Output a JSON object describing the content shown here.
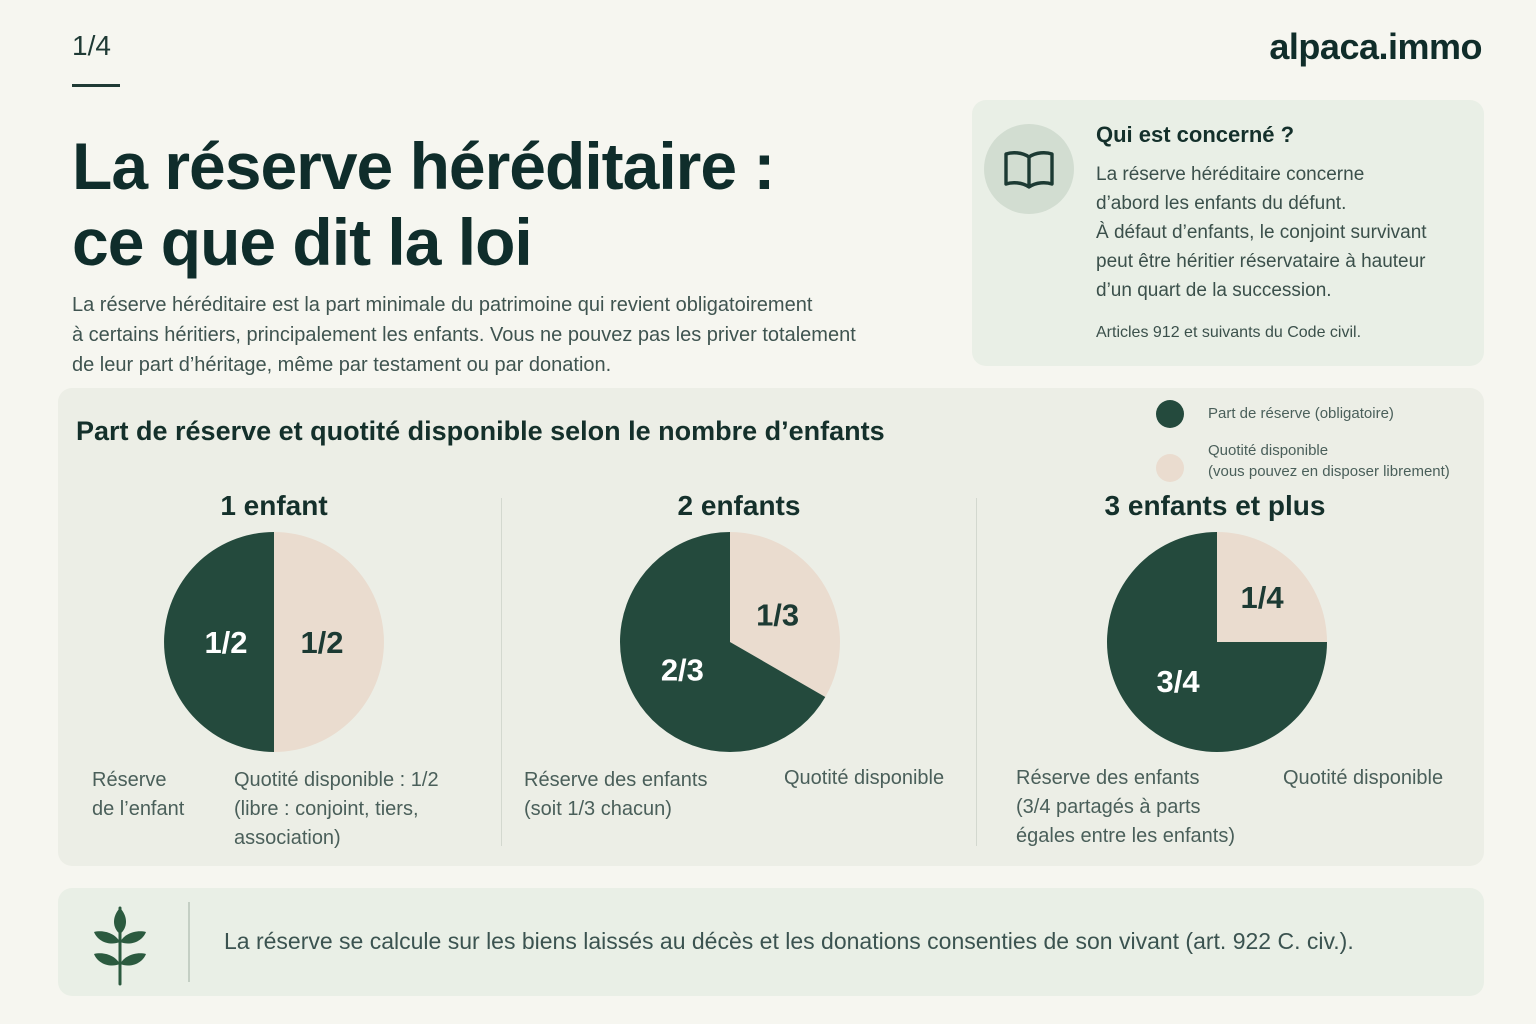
{
  "header": {
    "page_indicator": "1/4",
    "brand": "alpaca.immo"
  },
  "hero": {
    "title_line1": "La réserve héréditaire :",
    "title_line2": "ce que dit la loi",
    "intro_line1": "La réserve héréditaire est la part minimale du patrimoine qui revient obligatoirement",
    "intro_line2": "à certains héritiers, principalement les enfants. Vous ne pouvez pas les priver totalement",
    "intro_line3": "de leur part d’héritage, même par testament ou par donation."
  },
  "info_card": {
    "icon": "book-icon",
    "title": "Qui est concerné ?",
    "body_line1": "La réserve héréditaire concerne",
    "body_line2": "d’abord les enfants du défunt.",
    "body_line3": "À défaut d’enfants, le conjoint survivant",
    "body_line4": "peut être héritier réservataire à hauteur",
    "body_line5": "d’un quart de la succession.",
    "reference": "Articles 912 et suivants du Code civil."
  },
  "colors": {
    "reserve": "#244a3d",
    "disponible": "#eadccf",
    "accent_panel": "#e9efe6"
  },
  "chart_data": {
    "type": "pie",
    "title": "Part de réserve et quotité disponible selon le nombre d’enfants",
    "legend": [
      {
        "label": "Part de réserve (obligatoire)",
        "color": "#244a3d"
      },
      {
        "label": "Quotité disponible",
        "sublabel": "(vous pouvez en disposer librement)",
        "color": "#eadccf"
      }
    ],
    "legend_position": "top-right",
    "pies": [
      {
        "title": "1 enfant",
        "slices": [
          {
            "name": "Part de réserve (obligatoire)",
            "value": 0.5,
            "label": "1/2",
            "color": "#244a3d"
          },
          {
            "name": "Quotité disponible",
            "value": 0.5,
            "label": "1/2",
            "color": "#eadccf"
          }
        ],
        "caption_reserve_line1": "Réserve",
        "caption_reserve_line2": "de l’enfant",
        "caption_disponible_line1": "Quotité disponible : 1/2",
        "caption_disponible_line2": "(libre : conjoint, tiers,",
        "caption_disponible_line3": "association)"
      },
      {
        "title": "2 enfants",
        "slices": [
          {
            "name": "Part de réserve (obligatoire)",
            "value": 0.6667,
            "label": "2/3",
            "color": "#244a3d"
          },
          {
            "name": "Quotité disponible",
            "value": 0.3333,
            "label": "1/3",
            "color": "#eadccf"
          }
        ],
        "caption_reserve_line1": "Réserve des enfants",
        "caption_reserve_line2": "(soit 1/3 chacun)",
        "caption_disponible_line1": "Quotité disponible"
      },
      {
        "title": "3 enfants et plus",
        "slices": [
          {
            "name": "Part de réserve (obligatoire)",
            "value": 0.75,
            "label": "3/4",
            "color": "#244a3d"
          },
          {
            "name": "Quotité disponible",
            "value": 0.25,
            "label": "1/4",
            "color": "#eadccf"
          }
        ],
        "caption_reserve_line1": "Réserve des enfants",
        "caption_reserve_line2": "(3/4 partagés à parts",
        "caption_reserve_line3": "égales entre les enfants)",
        "caption_disponible_line1": "Quotité disponible"
      }
    ]
  },
  "footer": {
    "icon": "leaf-branch-icon",
    "text": "La réserve se calcule sur les biens laissés au décès et les donations consenties de son vivant (art. 922 C. civ.)."
  }
}
